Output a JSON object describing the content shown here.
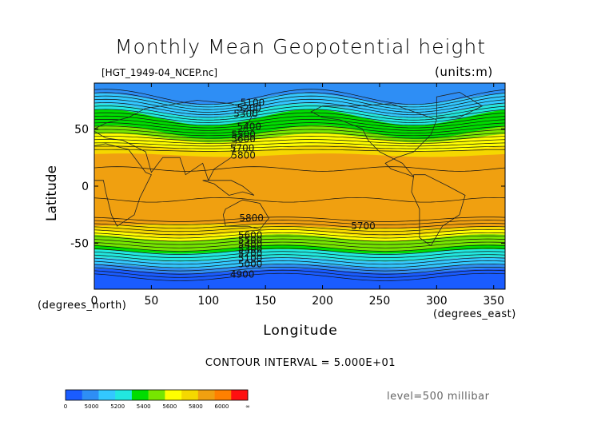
{
  "chart_data": {
    "type": "heatmap",
    "title": "Monthly Mean Geopotential height",
    "subtitle_left": "[HGT_1949-04_NCEP.nc]",
    "subtitle_right": "(units:m)",
    "xlabel": "Longitude",
    "ylabel": "Latitude",
    "x_unit": "(degrees_east)",
    "y_unit": "(degrees_north)",
    "xlim": [
      0,
      360
    ],
    "ylim": [
      -90,
      90
    ],
    "x_ticks": [
      0,
      50,
      100,
      150,
      200,
      250,
      300,
      350
    ],
    "y_ticks": [
      -50,
      0,
      50
    ],
    "contour_interval": "CONTOUR INTERVAL = 5.000E+01",
    "level": "level=500 millibar",
    "contour_labels": [
      {
        "text": "5100",
        "lon": 128,
        "lat": 73
      },
      {
        "text": "5200",
        "lon": 125,
        "lat": 68
      },
      {
        "text": "5300",
        "lon": 122,
        "lat": 63
      },
      {
        "text": "5400",
        "lon": 125,
        "lat": 52
      },
      {
        "text": "5500",
        "lon": 120,
        "lat": 45
      },
      {
        "text": "5600",
        "lon": 120,
        "lat": 41
      },
      {
        "text": "5700",
        "lon": 119,
        "lat": 33
      },
      {
        "text": "5800",
        "lon": 120,
        "lat": 27
      },
      {
        "text": "5800",
        "lon": 127,
        "lat": -28
      },
      {
        "text": "5700",
        "lon": 225,
        "lat": -35
      },
      {
        "text": "5600",
        "lon": 126,
        "lat": -43
      },
      {
        "text": "5500",
        "lon": 126,
        "lat": -47
      },
      {
        "text": "5400",
        "lon": 126,
        "lat": -51
      },
      {
        "text": "5300",
        "lon": 126,
        "lat": -55
      },
      {
        "text": "5200",
        "lon": 126,
        "lat": -59
      },
      {
        "text": "5100",
        "lon": 126,
        "lat": -63
      },
      {
        "text": "5000",
        "lon": 126,
        "lat": -68
      },
      {
        "text": "4900",
        "lon": 119,
        "lat": -77
      }
    ],
    "colorbar": {
      "tick_labels": [
        "0",
        "5000",
        "5200",
        "5400",
        "5600",
        "5800",
        "6000",
        "∞"
      ],
      "colors": [
        "#1a5cff",
        "#2e8ef5",
        "#33c8ff",
        "#22e8e0",
        "#00dd00",
        "#77e600",
        "#ffff00",
        "#f5d800",
        "#f0a010",
        "#ff8000",
        "#ff1010"
      ]
    },
    "band_colors": {
      "c_lt5000": "#1a5cff",
      "c_5000": "#2e8ef5",
      "c_5100": "#33c8ff",
      "c_5300": "#22e8e0",
      "c_5400": "#00dd00",
      "c_5550": "#77e600",
      "c_5650": "#ffff00",
      "c_5750": "#f5d800",
      "c_5800": "#f0a010"
    }
  }
}
